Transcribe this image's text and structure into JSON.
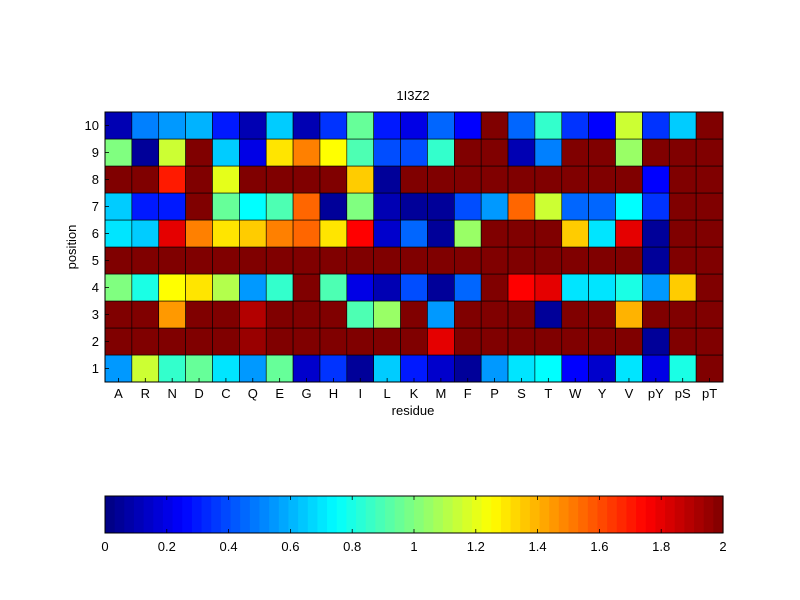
{
  "chart_data": {
    "type": "heatmap",
    "title": "1I3Z2",
    "xlabel": "residue",
    "ylabel": "position",
    "x_categories": [
      "A",
      "R",
      "N",
      "D",
      "C",
      "Q",
      "E",
      "G",
      "H",
      "I",
      "L",
      "K",
      "M",
      "F",
      "P",
      "S",
      "T",
      "W",
      "Y",
      "V",
      "pY",
      "pS",
      "pT"
    ],
    "y_categories": [
      "1",
      "2",
      "3",
      "4",
      "5",
      "6",
      "7",
      "8",
      "9",
      "10"
    ],
    "colormap": "jet",
    "clim": [
      0,
      2
    ],
    "colorbar": {
      "orientation": "horizontal",
      "ticks": [
        0,
        0.2,
        0.4,
        0.6,
        0.8,
        1,
        1.2,
        1.4,
        1.6,
        1.8,
        2
      ],
      "tick_labels": [
        "0",
        "0.2",
        "0.4",
        "0.6",
        "0.8",
        "1",
        "1.2",
        "1.4",
        "1.6",
        "1.8",
        "2"
      ]
    },
    "values": [
      [
        0.55,
        1.15,
        0.85,
        0.95,
        0.7,
        0.55,
        0.95,
        0.15,
        0.35,
        0.05,
        0.65,
        0.3,
        0.15,
        0.05,
        0.55,
        0.7,
        0.75,
        0.25,
        0.15,
        0.7,
        0.2,
        0.8,
        2.0
      ],
      [
        2.0,
        2.0,
        2.0,
        2.0,
        2.0,
        1.95,
        2.0,
        2.0,
        2.0,
        2.0,
        2.0,
        2.0,
        1.8,
        2.0,
        2.0,
        2.0,
        2.0,
        2.0,
        2.0,
        2.0,
        0.05,
        2.0,
        2.0
      ],
      [
        2.0,
        2.0,
        1.45,
        2.0,
        2.0,
        1.9,
        2.0,
        2.0,
        2.0,
        0.9,
        1.05,
        2.0,
        0.55,
        2.0,
        2.0,
        2.0,
        0.05,
        2.0,
        2.0,
        1.4,
        2.0,
        2.0,
        2.0
      ],
      [
        1.0,
        0.8,
        1.25,
        1.3,
        1.1,
        0.55,
        0.85,
        2.0,
        0.9,
        0.2,
        0.1,
        0.4,
        0.05,
        0.45,
        2.0,
        1.75,
        1.8,
        0.7,
        0.7,
        0.8,
        0.55,
        1.35,
        2.0
      ],
      [
        2.0,
        2.0,
        2.0,
        2.0,
        2.0,
        2.0,
        2.0,
        2.0,
        2.0,
        2.0,
        2.0,
        2.0,
        2.0,
        2.0,
        2.0,
        2.0,
        2.0,
        2.0,
        2.0,
        2.0,
        0.05,
        2.0,
        2.0
      ],
      [
        0.7,
        0.65,
        1.8,
        1.5,
        1.3,
        1.35,
        1.5,
        1.55,
        1.3,
        1.75,
        0.15,
        0.45,
        0.05,
        1.05,
        2.0,
        2.0,
        2.0,
        1.35,
        0.7,
        1.8,
        0.05,
        2.0,
        2.0
      ],
      [
        0.65,
        0.3,
        0.3,
        2.0,
        0.95,
        0.75,
        0.9,
        1.55,
        0.05,
        1.0,
        0.1,
        0.05,
        0.05,
        0.4,
        0.55,
        1.55,
        1.15,
        0.45,
        0.45,
        0.75,
        0.35,
        2.0,
        2.0
      ],
      [
        2.0,
        2.0,
        1.7,
        2.0,
        1.2,
        2.0,
        2.0,
        2.0,
        2.0,
        1.35,
        0.05,
        2.0,
        2.0,
        2.0,
        2.0,
        2.0,
        2.0,
        2.0,
        2.0,
        2.0,
        0.25,
        2.0,
        2.0
      ],
      [
        1.0,
        0.05,
        1.15,
        2.0,
        0.65,
        0.2,
        1.3,
        1.5,
        1.25,
        0.9,
        0.4,
        0.4,
        0.85,
        2.0,
        2.0,
        0.1,
        0.5,
        2.0,
        2.0,
        1.05,
        2.0,
        2.0,
        2.0
      ],
      [
        0.1,
        0.5,
        0.55,
        0.6,
        0.3,
        0.1,
        0.65,
        0.1,
        0.35,
        0.95,
        0.3,
        0.2,
        0.45,
        0.25,
        2.0,
        0.45,
        0.85,
        0.35,
        0.25,
        1.15,
        0.35,
        0.65,
        2.0
      ]
    ]
  }
}
